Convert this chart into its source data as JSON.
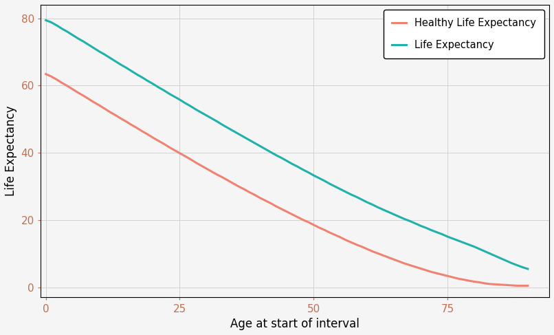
{
  "title": "",
  "xlabel": "Age at start of interval",
  "ylabel": "Life Expectancy",
  "x_ticks": [
    0,
    25,
    50,
    75
  ],
  "y_ticks": [
    0,
    20,
    40,
    60,
    80
  ],
  "ylim": [
    -3,
    84
  ],
  "xlim": [
    -1,
    94
  ],
  "background_color": "#F5F5F5",
  "plot_bg_color": "#F5F5F5",
  "grid_color": "#CCCCCC",
  "line_color_healthy": "#F08272",
  "line_color_life": "#20B2AA",
  "tick_color": "#C07050",
  "legend_label_healthy": "Healthy Life Expectancy",
  "legend_label_life": "Life Expectancy",
  "ages": [
    0,
    1,
    2,
    3,
    4,
    5,
    6,
    7,
    8,
    9,
    10,
    11,
    12,
    13,
    14,
    15,
    16,
    17,
    18,
    19,
    20,
    21,
    22,
    23,
    24,
    25,
    26,
    27,
    28,
    29,
    30,
    31,
    32,
    33,
    34,
    35,
    36,
    37,
    38,
    39,
    40,
    41,
    42,
    43,
    44,
    45,
    46,
    47,
    48,
    49,
    50,
    51,
    52,
    53,
    54,
    55,
    56,
    57,
    58,
    59,
    60,
    61,
    62,
    63,
    64,
    65,
    66,
    67,
    68,
    69,
    70,
    71,
    72,
    73,
    74,
    75,
    76,
    77,
    78,
    79,
    80,
    81,
    82,
    83,
    84,
    85,
    86,
    87,
    88,
    89,
    90
  ],
  "life_expectancy": [
    79.4,
    78.8,
    77.9,
    76.9,
    76.0,
    75.0,
    74.0,
    73.1,
    72.1,
    71.1,
    70.1,
    69.2,
    68.2,
    67.2,
    66.2,
    65.3,
    64.3,
    63.3,
    62.4,
    61.4,
    60.5,
    59.5,
    58.6,
    57.6,
    56.7,
    55.8,
    54.8,
    53.9,
    52.9,
    52.0,
    51.1,
    50.2,
    49.3,
    48.3,
    47.4,
    46.5,
    45.6,
    44.7,
    43.8,
    42.9,
    42.0,
    41.1,
    40.2,
    39.3,
    38.5,
    37.6,
    36.7,
    35.9,
    35.0,
    34.2,
    33.3,
    32.5,
    31.7,
    30.8,
    30.0,
    29.2,
    28.4,
    27.6,
    26.9,
    26.1,
    25.3,
    24.6,
    23.8,
    23.1,
    22.4,
    21.7,
    21.0,
    20.3,
    19.7,
    19.0,
    18.3,
    17.7,
    17.0,
    16.4,
    15.8,
    15.1,
    14.5,
    13.9,
    13.3,
    12.7,
    12.1,
    11.4,
    10.7,
    10.0,
    9.3,
    8.6,
    7.9,
    7.2,
    6.6,
    6.0,
    5.5
  ],
  "healthy_life_expectancy": [
    63.4,
    62.7,
    61.8,
    60.8,
    59.9,
    58.9,
    57.9,
    57.0,
    56.0,
    55.0,
    54.1,
    53.1,
    52.1,
    51.2,
    50.2,
    49.3,
    48.3,
    47.4,
    46.4,
    45.5,
    44.5,
    43.6,
    42.7,
    41.7,
    40.8,
    39.9,
    39.0,
    38.1,
    37.1,
    36.2,
    35.3,
    34.4,
    33.5,
    32.7,
    31.8,
    30.9,
    30.0,
    29.2,
    28.3,
    27.5,
    26.6,
    25.8,
    25.0,
    24.1,
    23.3,
    22.5,
    21.7,
    20.9,
    20.1,
    19.4,
    18.6,
    17.8,
    17.1,
    16.3,
    15.6,
    14.9,
    14.1,
    13.4,
    12.7,
    12.1,
    11.4,
    10.7,
    10.1,
    9.5,
    8.9,
    8.3,
    7.7,
    7.1,
    6.6,
    6.1,
    5.6,
    5.1,
    4.6,
    4.2,
    3.8,
    3.4,
    3.0,
    2.6,
    2.3,
    2.0,
    1.7,
    1.5,
    1.2,
    1.0,
    0.9,
    0.8,
    0.7,
    0.6,
    0.5,
    0.5,
    0.5
  ]
}
